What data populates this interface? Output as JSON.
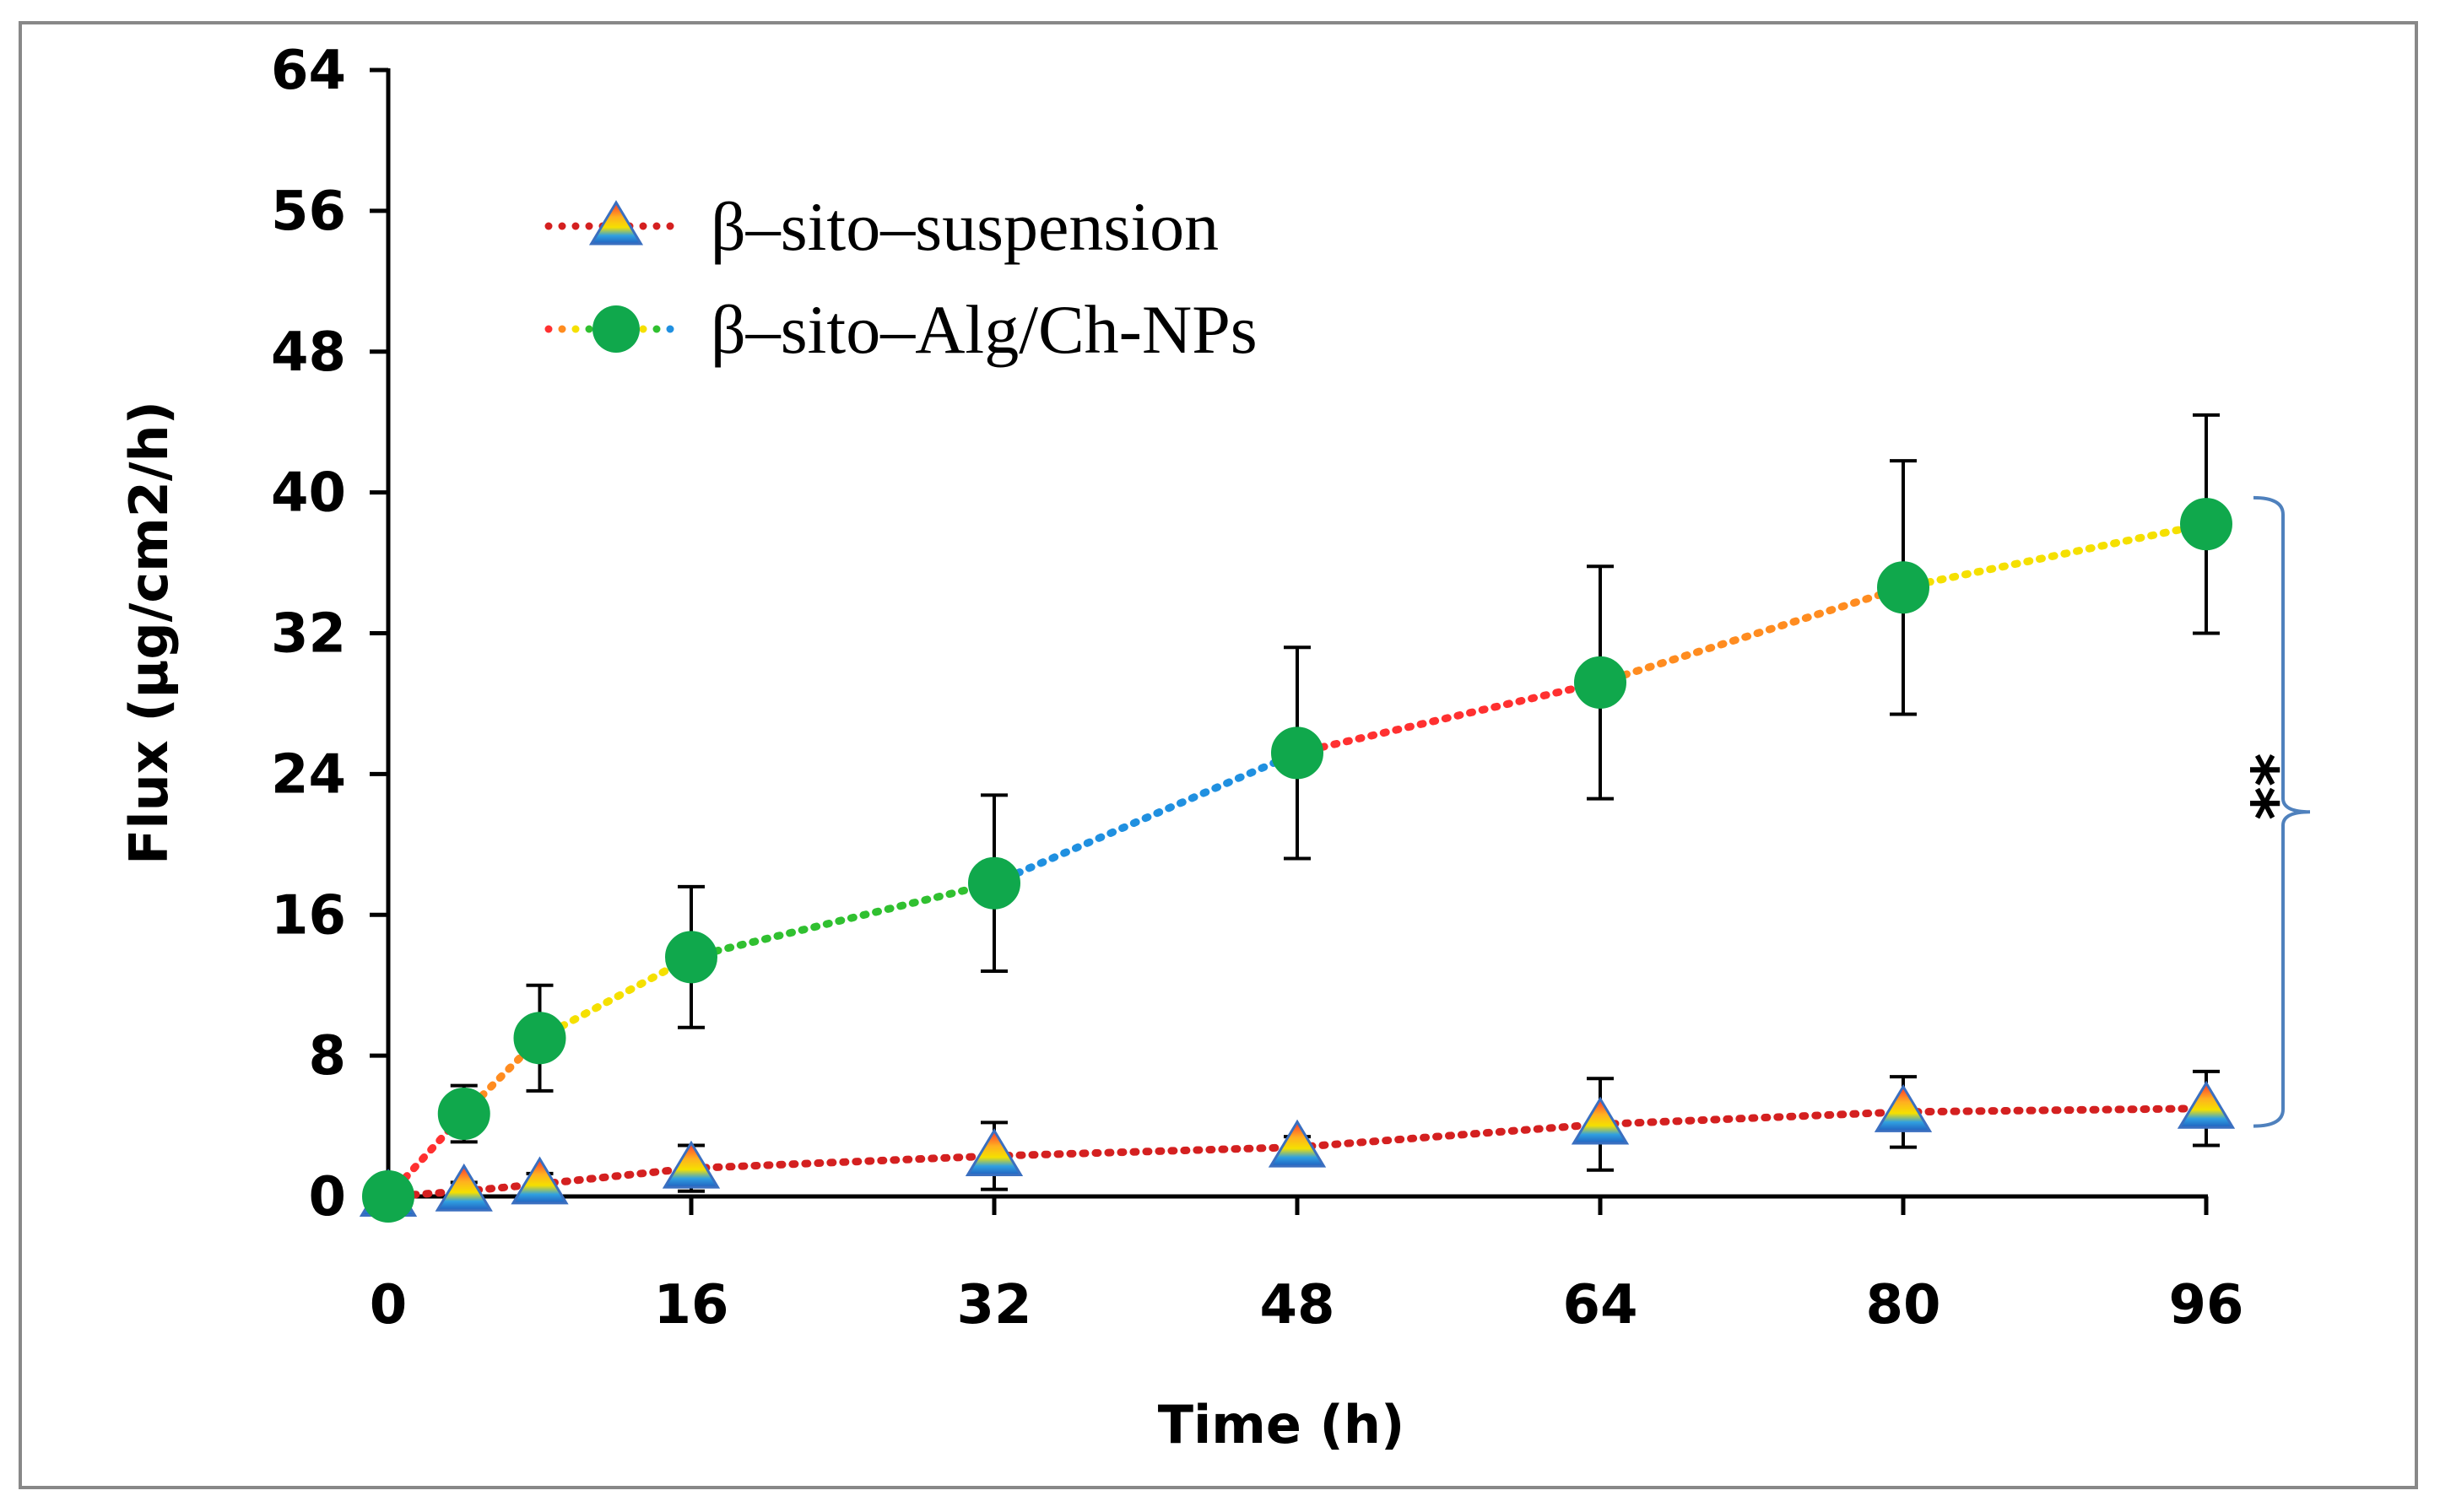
{
  "chart_data": {
    "type": "line",
    "title": "",
    "xlabel": "Time (h)",
    "ylabel": "Flux (µg/cm2/h)",
    "xlim": [
      0,
      96
    ],
    "ylim": [
      0,
      64
    ],
    "xticks": [
      0,
      16,
      32,
      48,
      64,
      80,
      96
    ],
    "yticks": [
      0,
      8,
      16,
      24,
      32,
      40,
      48,
      56,
      64
    ],
    "grid": false,
    "legend_position": "top-left",
    "series": [
      {
        "name": "β–sito–suspension",
        "marker": "triangle",
        "x": [
          0,
          4,
          8,
          16,
          32,
          48,
          64,
          80,
          96
        ],
        "y": [
          0,
          0.3,
          0.7,
          1.6,
          2.3,
          2.8,
          4.1,
          4.8,
          5.0
        ],
        "err": [
          0,
          0.5,
          0.6,
          1.3,
          1.9,
          0.6,
          2.6,
          2.0,
          2.1
        ],
        "line_colors": [
          "#d42020"
        ]
      },
      {
        "name": "β–sito–Alg/Ch-NPs",
        "marker": "circle",
        "x": [
          0,
          4,
          8,
          16,
          32,
          48,
          64,
          80,
          96
        ],
        "y": [
          0,
          4.7,
          9.0,
          13.6,
          17.8,
          25.2,
          29.2,
          34.6,
          38.2
        ],
        "err": [
          0,
          1.6,
          3.0,
          4.0,
          5.0,
          6.0,
          6.6,
          7.2,
          6.2
        ],
        "marker_color": "#10a84c",
        "line_colors": [
          "#ff3030",
          "#ff8c20",
          "#f5e000",
          "#30c030",
          "#2090e0"
        ]
      }
    ],
    "significance": {
      "label": "**",
      "between": [
        "β–sito–suspension",
        "β–sito–Alg/Ch-NPs"
      ],
      "at_x": 96,
      "bracket_color": "#4f81bd"
    }
  }
}
